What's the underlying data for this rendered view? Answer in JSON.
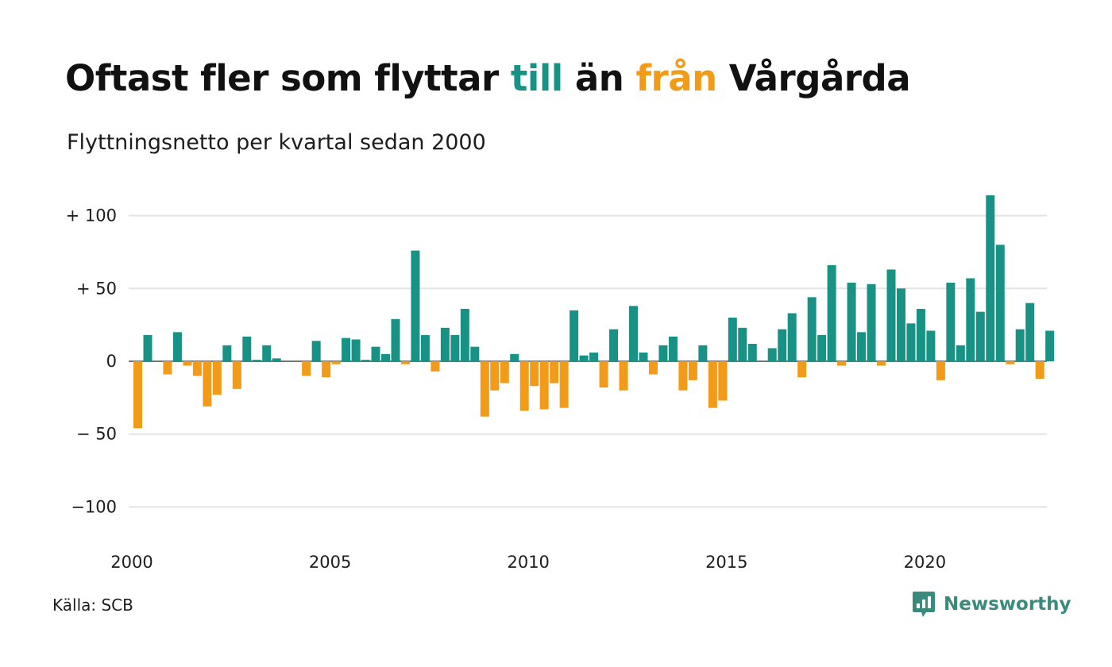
{
  "title": {
    "part1": "Oftast fler som flyttar ",
    "till": "till",
    "part2": " än ",
    "fran": "från",
    "part3": " Vårgårda"
  },
  "subtitle": "Flyttningsnetto per kvartal sedan 2000",
  "source": "Källa: SCB",
  "brand": {
    "name": "Newsworthy",
    "icon": "newsworthy-logo-icon"
  },
  "colors": {
    "positive": "#179284",
    "negative": "#f29b18",
    "grid": "#e3e3e3"
  },
  "chart_data": {
    "type": "bar",
    "x_start": 2000,
    "periods_per_year": 4,
    "ylim": [
      -110,
      115
    ],
    "y_ticks": [
      {
        "value": 100,
        "label": "+ 100"
      },
      {
        "value": 50,
        "label": "+  50"
      },
      {
        "value": 0,
        "label": "0"
      },
      {
        "value": -50,
        "label": "− 50"
      },
      {
        "value": -100,
        "label": "−100"
      }
    ],
    "x_ticks": [
      "2000",
      "2005",
      "2010",
      "2015",
      "2020"
    ],
    "grid": true,
    "values": [
      -46,
      18,
      0,
      -9,
      20,
      -3,
      -10,
      -31,
      -23,
      11,
      -19,
      17,
      1,
      11,
      2,
      0,
      0,
      -10,
      14,
      -11,
      -2,
      16,
      15,
      1,
      10,
      5,
      29,
      -2,
      76,
      18,
      -7,
      23,
      18,
      36,
      10,
      -38,
      -20,
      -15,
      5,
      -34,
      -17,
      -33,
      -15,
      -32,
      35,
      4,
      6,
      -18,
      22,
      -20,
      38,
      6,
      -9,
      11,
      17,
      -20,
      -13,
      11,
      -32,
      -27,
      30,
      23,
      12,
      0,
      9,
      22,
      33,
      -11,
      44,
      18,
      66,
      -3,
      54,
      20,
      53,
      -3,
      63,
      50,
      26,
      36,
      21,
      -13,
      54,
      11,
      57,
      34,
      114,
      80,
      -2,
      22,
      40,
      -12,
      21
    ]
  }
}
